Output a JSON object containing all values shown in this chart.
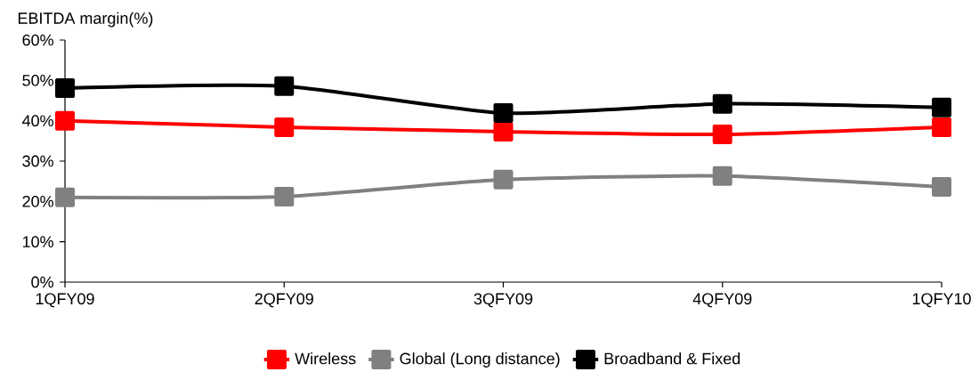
{
  "chart_data": {
    "type": "line",
    "ylabel": "EBITDA margin(%)",
    "categories": [
      "1QFY09",
      "2QFY09",
      "3QFY09",
      "4QFY09",
      "1QFY10"
    ],
    "series": [
      {
        "name": "Wireless",
        "color": "#ff0000",
        "values": [
          40.0,
          38.4,
          37.3,
          36.6,
          38.4
        ]
      },
      {
        "name": "Global (Long distance)",
        "color": "#808080",
        "values": [
          21.0,
          21.2,
          25.4,
          26.3,
          23.6
        ]
      },
      {
        "name": "Broadband & Fixed",
        "color": "#000000",
        "values": [
          48.1,
          48.6,
          41.9,
          44.2,
          43.3
        ]
      }
    ],
    "ylim": [
      0,
      60
    ],
    "yticks": [
      {
        "value": 0,
        "label": "0%"
      },
      {
        "value": 10,
        "label": "10%"
      },
      {
        "value": 20,
        "label": "20%"
      },
      {
        "value": 30,
        "label": "30%"
      },
      {
        "value": 40,
        "label": "40%"
      },
      {
        "value": 50,
        "label": "50%"
      },
      {
        "value": 60,
        "label": "60%"
      }
    ],
    "grid": false,
    "legend": "bottom",
    "marker": "square",
    "line_style": "solid"
  }
}
